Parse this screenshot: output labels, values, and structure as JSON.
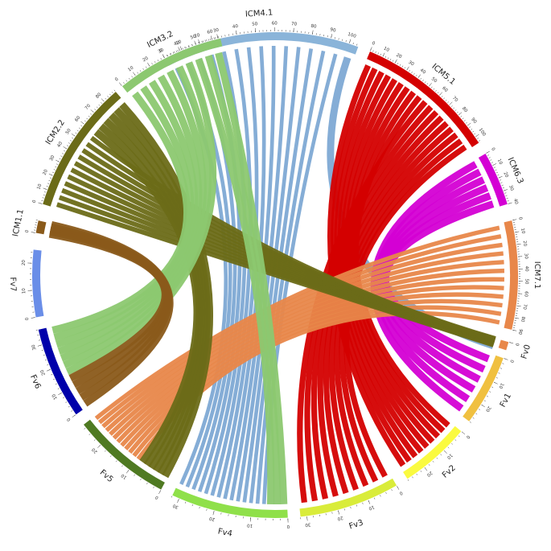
{
  "chart_data": {
    "type": "chord",
    "segments": [
      {
        "name": "ICM4.1",
        "start": 8,
        "length": 105,
        "color": "#8ab4d9",
        "ticks": [
          0,
          10,
          20,
          30,
          40,
          50,
          60,
          70,
          80,
          90,
          100
        ]
      },
      {
        "name": "ICM5.1",
        "start": 60,
        "length": 105,
        "color": "#d40000",
        "ticks": [
          0,
          10,
          20,
          30,
          40,
          50,
          60,
          70,
          80,
          90,
          100
        ]
      },
      {
        "name": "ICM6.3",
        "start": 80,
        "length": 40,
        "color": "#d400d4",
        "ticks": [
          0,
          10,
          20,
          30,
          40
        ]
      },
      {
        "name": "ICM7.1",
        "start": 0,
        "length": 90,
        "color": "#e8874a",
        "ticks": [
          0,
          10,
          20,
          30,
          40,
          50,
          60,
          70,
          80,
          90
        ]
      },
      {
        "name": "Fv0",
        "start": 0,
        "length": 1,
        "color": "#e8874a",
        "ticks": [
          0
        ]
      },
      {
        "name": "Fv1",
        "start": 0,
        "length": 28,
        "color": "#f0c040",
        "ticks": [
          0,
          10,
          20
        ]
      },
      {
        "name": "Fv2",
        "start": 0,
        "length": 28,
        "color": "#fafa40",
        "ticks": [
          0,
          10,
          20
        ]
      },
      {
        "name": "Fv3",
        "start": 0,
        "length": 32,
        "color": "#d9ec3a",
        "ticks": [
          0,
          10,
          20,
          30
        ]
      },
      {
        "name": "Fv4",
        "start": 0,
        "length": 32,
        "color": "#8fe04a",
        "ticks": [
          0,
          10,
          20,
          30
        ]
      },
      {
        "name": "Fv5",
        "start": 0,
        "length": 27,
        "color": "#4f7a22",
        "ticks": [
          0,
          10,
          20
        ]
      },
      {
        "name": "Fv6",
        "start": 0,
        "length": 36,
        "color": "#0000aa",
        "ticks": [
          0,
          10,
          20,
          30
        ]
      },
      {
        "name": "Fv7",
        "start": 0,
        "length": 25,
        "color": "#6a8ee8",
        "ticks": [
          0,
          10,
          20
        ]
      },
      {
        "name": "ICM1.1",
        "start": 0,
        "length": 10,
        "color": "#8a5a1a",
        "ticks": [
          0
        ]
      },
      {
        "name": "ICM2.2",
        "start": 0,
        "length": 90,
        "color": "#6b6b18",
        "ticks": [
          0,
          10,
          20,
          30,
          40,
          50,
          60,
          70,
          80
        ]
      },
      {
        "name": "ICM3.2",
        "start": 0,
        "length": 65,
        "color": "#8cc870",
        "ticks": [
          0,
          10,
          20,
          30,
          40,
          50,
          60
        ]
      }
    ],
    "links": [
      {
        "from": "ICM4.1",
        "to": "Fv4",
        "color": "#7ea9d4",
        "count": 14
      },
      {
        "from": "ICM4.1",
        "to": "Fv0",
        "color": "#7ea9d4",
        "count": 1
      },
      {
        "from": "ICM5.1",
        "to": "Fv2",
        "color": "#d40000",
        "count": 9
      },
      {
        "from": "ICM5.1",
        "to": "Fv3",
        "color": "#d40000",
        "count": 9
      },
      {
        "from": "ICM6.3",
        "to": "Fv1",
        "color": "#d400d4",
        "count": 6
      },
      {
        "from": "ICM7.1",
        "to": "Fv5",
        "color": "#e8874a",
        "count": 12
      },
      {
        "from": "ICM2.2",
        "to": "Fv0",
        "color": "#6b6b18",
        "count": 11
      },
      {
        "from": "ICM2.2",
        "to": "Fv5",
        "color": "#6b6b18",
        "count": 6
      },
      {
        "from": "ICM3.2",
        "to": "Fv6",
        "color": "#8cc870",
        "count": 7
      },
      {
        "from": "ICM3.2",
        "to": "Fv4",
        "color": "#8cc870",
        "count": 3
      },
      {
        "from": "ICM1.1",
        "to": "Fv6",
        "color": "#8a5a1a",
        "count": 5
      }
    ]
  }
}
